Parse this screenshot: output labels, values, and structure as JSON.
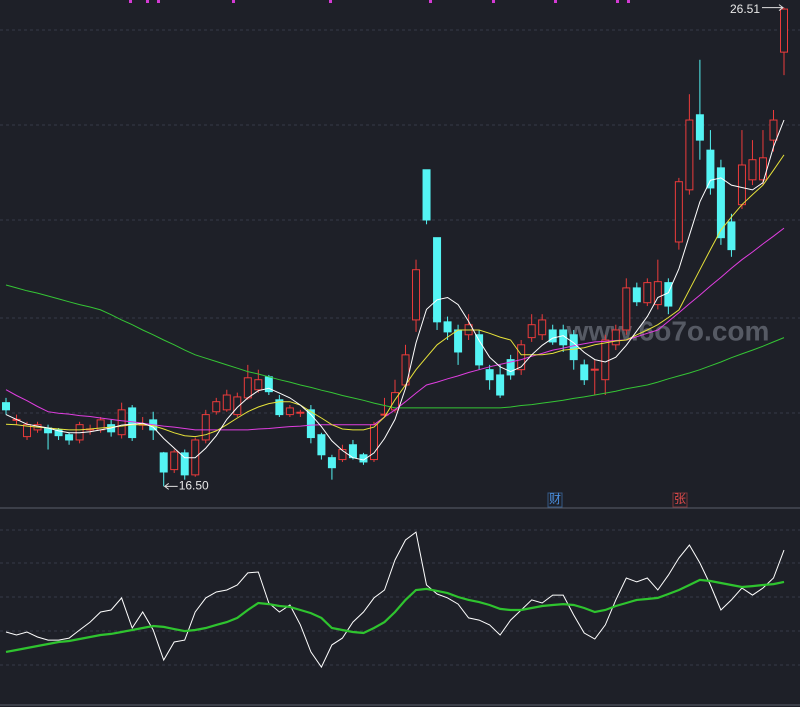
{
  "chart_data": [
    {
      "type": "candlestick",
      "ylim": [
        16.11,
        26.67
      ],
      "up_color": "#ec3b3b",
      "down_color": "#54f4f4",
      "open": [
        18.25,
        17.89,
        17.54,
        17.68,
        17.72,
        17.68,
        17.58,
        17.47,
        17.68,
        17.68,
        17.79,
        17.58,
        18.14,
        17.79,
        17.89,
        17.2,
        16.85,
        17.2,
        16.74,
        17.47,
        18.06,
        18.1,
        18.0,
        18.35,
        18.52,
        18.79,
        18.31,
        18.0,
        18.04,
        18.1,
        17.58,
        17.1,
        17.06,
        17.37,
        17.16,
        17.06,
        18.0,
        18.1,
        18.62,
        19.98,
        23.12,
        21.7,
        19.94,
        19.77,
        19.67,
        19.67,
        18.94,
        18.83,
        19.15,
        18.94,
        19.61,
        19.67,
        19.77,
        19.77,
        19.67,
        19.04,
        18.94,
        18.73,
        19.46,
        19.77,
        20.65,
        20.34,
        20.3,
        20.76,
        21.61,
        22.7,
        24.27,
        23.53,
        23.16,
        22.03,
        22.39,
        22.91,
        22.91,
        23.74,
        25.58
      ],
      "high": [
        18.35,
        18.0,
        17.85,
        17.85,
        17.79,
        17.72,
        17.62,
        17.85,
        17.79,
        17.95,
        17.89,
        18.25,
        18.2,
        17.95,
        18.06,
        17.22,
        17.27,
        17.27,
        17.52,
        18.1,
        18.35,
        18.52,
        18.46,
        19.04,
        18.94,
        18.83,
        18.41,
        18.2,
        18.1,
        18.2,
        17.62,
        17.16,
        17.37,
        17.47,
        17.2,
        17.85,
        18.35,
        18.73,
        19.46,
        21.24,
        23.12,
        21.7,
        20.05,
        19.88,
        20.1,
        19.77,
        19.04,
        19.04,
        19.25,
        19.56,
        20.1,
        20.1,
        19.88,
        19.88,
        19.77,
        19.15,
        19.15,
        19.67,
        19.88,
        20.85,
        20.76,
        20.85,
        21.24,
        20.85,
        22.95,
        24.7,
        25.42,
        23.95,
        23.33,
        22.2,
        23.95,
        23.74,
        23.95,
        24.37,
        26.51
      ],
      "low": [
        18.0,
        17.79,
        17.47,
        17.62,
        17.27,
        17.47,
        17.37,
        17.4,
        17.58,
        17.62,
        17.54,
        17.5,
        17.45,
        17.68,
        17.47,
        16.5,
        16.78,
        16.64,
        16.7,
        17.4,
        18.0,
        18.06,
        17.95,
        18.31,
        18.46,
        18.41,
        17.95,
        17.95,
        17.95,
        17.4,
        17.06,
        16.64,
        17.01,
        17.06,
        16.95,
        17.01,
        17.95,
        18.04,
        18.52,
        19.73,
        21.98,
        19.77,
        19.56,
        19.04,
        19.56,
        18.94,
        18.52,
        18.35,
        18.73,
        18.83,
        19.52,
        19.56,
        19.46,
        19.31,
        18.94,
        18.62,
        18.41,
        18.41,
        19.35,
        19.67,
        20.27,
        20.27,
        20.2,
        20.1,
        21.45,
        22.6,
        23.33,
        22.6,
        21.55,
        21.3,
        22.3,
        22.8,
        22.8,
        23.5,
        25.1
      ],
      "close": [
        18.1,
        17.9,
        17.79,
        17.79,
        17.62,
        17.56,
        17.47,
        17.79,
        17.7,
        17.89,
        17.64,
        18.1,
        17.52,
        17.8,
        17.68,
        16.8,
        17.22,
        16.74,
        17.47,
        18.0,
        18.27,
        18.41,
        18.37,
        18.77,
        18.73,
        18.48,
        18.0,
        18.14,
        18.05,
        17.52,
        17.16,
        16.89,
        17.27,
        17.1,
        17.01,
        17.79,
        18.01,
        18.46,
        19.25,
        21.03,
        22.07,
        19.94,
        19.73,
        19.31,
        19.88,
        19.04,
        18.73,
        18.41,
        18.83,
        19.46,
        19.88,
        19.98,
        19.52,
        19.46,
        19.15,
        18.73,
        18.95,
        19.56,
        19.77,
        20.65,
        20.36,
        20.76,
        20.78,
        20.27,
        22.87,
        24.16,
        23.74,
        22.74,
        21.7,
        21.45,
        23.22,
        23.33,
        23.37,
        24.16,
        26.48
      ],
      "series": [
        {
          "color": "#35c535",
          "values": [
            20.71,
            20.65,
            20.59,
            20.54,
            20.48,
            20.42,
            20.36,
            20.3,
            20.25,
            20.19,
            20.09,
            19.98,
            19.88,
            19.77,
            19.67,
            19.56,
            19.46,
            19.35,
            19.25,
            19.18,
            19.11,
            19.04,
            18.97,
            18.9,
            18.85,
            18.79,
            18.73,
            18.68,
            18.62,
            18.57,
            18.51,
            18.46,
            18.4,
            18.35,
            18.3,
            18.24,
            18.19,
            18.14,
            18.14,
            18.14,
            18.14,
            18.14,
            18.14,
            18.14,
            18.14,
            18.14,
            18.14,
            18.14,
            18.16,
            18.19,
            18.21,
            18.24,
            18.27,
            18.3,
            18.34,
            18.37,
            18.41,
            18.45,
            18.49,
            18.54,
            18.58,
            18.62,
            18.68,
            18.75,
            18.81,
            18.87,
            18.94,
            19.02,
            19.1,
            19.19,
            19.27,
            19.35,
            19.43,
            19.52,
            19.61
          ]
        },
        {
          "color": "#e03ee0",
          "values": [
            18.52,
            18.4,
            18.29,
            18.17,
            18.06,
            18.03,
            18.01,
            17.98,
            17.96,
            17.93,
            17.9,
            17.87,
            17.85,
            17.82,
            17.79,
            17.76,
            17.74,
            17.71,
            17.68,
            17.68,
            17.68,
            17.68,
            17.68,
            17.68,
            17.7,
            17.71,
            17.73,
            17.75,
            17.76,
            17.78,
            17.79,
            17.79,
            17.79,
            17.79,
            17.79,
            17.79,
            17.95,
            18.1,
            18.27,
            18.45,
            18.62,
            18.68,
            18.75,
            18.81,
            18.88,
            18.94,
            19.0,
            19.05,
            19.1,
            19.15,
            19.22,
            19.28,
            19.35,
            19.39,
            19.44,
            19.48,
            19.52,
            19.53,
            19.55,
            19.56,
            19.63,
            19.7,
            19.77,
            19.95,
            20.13,
            20.32,
            20.5,
            20.69,
            20.87,
            21.06,
            21.24,
            21.4,
            21.57,
            21.73,
            21.9
          ]
        },
        {
          "color": "#e6e23a",
          "values": [
            17.8,
            17.79,
            17.76,
            17.74,
            17.72,
            17.7,
            17.68,
            17.68,
            17.7,
            17.72,
            17.74,
            17.76,
            17.79,
            17.79,
            17.77,
            17.7,
            17.62,
            17.56,
            17.54,
            17.58,
            17.66,
            17.79,
            17.93,
            18.06,
            18.16,
            18.23,
            18.27,
            18.27,
            18.2,
            18.06,
            17.93,
            17.79,
            17.7,
            17.68,
            17.68,
            17.74,
            17.95,
            18.31,
            18.62,
            18.94,
            19.2,
            19.46,
            19.62,
            19.77,
            19.77,
            19.77,
            19.7,
            19.62,
            19.56,
            19.25,
            19.25,
            19.25,
            19.28,
            19.35,
            19.37,
            19.4,
            19.46,
            19.5,
            19.54,
            19.56,
            19.67,
            19.77,
            19.88,
            20.03,
            20.19,
            20.61,
            21.03,
            21.45,
            21.86,
            22.13,
            22.39,
            22.6,
            22.8,
            23.11,
            23.43
          ]
        },
        {
          "color": "#ffffff",
          "values": [
            18.0,
            17.9,
            17.8,
            17.76,
            17.72,
            17.66,
            17.62,
            17.62,
            17.64,
            17.68,
            17.72,
            17.78,
            17.8,
            17.82,
            17.74,
            17.5,
            17.3,
            17.1,
            17.1,
            17.3,
            17.56,
            17.9,
            18.15,
            18.35,
            18.5,
            18.55,
            18.45,
            18.35,
            18.2,
            18.0,
            17.75,
            17.45,
            17.25,
            17.1,
            17.05,
            17.2,
            17.5,
            17.9,
            18.55,
            19.5,
            20.2,
            20.4,
            20.45,
            20.3,
            19.95,
            19.55,
            19.2,
            19.0,
            18.9,
            19.0,
            19.25,
            19.45,
            19.6,
            19.65,
            19.5,
            19.3,
            19.15,
            19.1,
            19.2,
            19.45,
            19.75,
            20.05,
            20.45,
            20.55,
            21.05,
            21.75,
            22.45,
            22.9,
            22.95,
            22.8,
            22.75,
            22.7,
            22.85,
            23.6,
            24.16
          ]
        }
      ],
      "annotations": [
        {
          "value": 26.51,
          "label": "26.51"
        },
        {
          "value": 16.5,
          "label": "16.50"
        }
      ],
      "markers": [
        {
          "label": "财",
          "color": "#4a8fe0"
        },
        {
          "label": "张",
          "color": "#e04a4a"
        }
      ],
      "watermark": "www.6o7o.com"
    },
    {
      "type": "line",
      "ylim": [
        0,
        100
      ],
      "series": [
        {
          "color": "#ffffff",
          "width": 1,
          "values": [
            37.8,
            36.1,
            37.8,
            35.0,
            33.3,
            33.3,
            34.4,
            38.9,
            43.3,
            48.9,
            50.0,
            56.7,
            40.0,
            48.9,
            38.9,
            22.2,
            32.2,
            33.3,
            48.9,
            56.7,
            60.0,
            61.1,
            63.9,
            70.6,
            71.1,
            53.9,
            48.9,
            52.8,
            41.7,
            26.7,
            18.3,
            30.6,
            34.4,
            43.3,
            48.9,
            56.7,
            61.1,
            77.8,
            88.9,
            93.3,
            63.9,
            58.9,
            56.7,
            53.3,
            45.6,
            44.4,
            41.7,
            36.1,
            44.4,
            50.0,
            55.6,
            53.9,
            58.3,
            58.3,
            47.2,
            37.2,
            33.9,
            41.7,
            55.6,
            67.8,
            65.6,
            67.8,
            61.1,
            69.4,
            78.9,
            86.1,
            76.1,
            63.9,
            50.0,
            55.6,
            62.2,
            58.3,
            62.2,
            67.8,
            83.3
          ]
        },
        {
          "color": "#2fc42f",
          "width": 2.2,
          "values": [
            26.7,
            27.8,
            28.9,
            30.0,
            31.1,
            32.2,
            32.8,
            33.9,
            35.0,
            36.1,
            36.7,
            37.8,
            38.9,
            40.0,
            41.1,
            40.6,
            39.4,
            38.3,
            38.9,
            40.0,
            41.7,
            43.3,
            45.6,
            50.0,
            53.9,
            53.3,
            52.2,
            51.7,
            50.0,
            48.3,
            45.6,
            40.0,
            38.9,
            37.8,
            37.2,
            40.0,
            43.3,
            48.9,
            55.6,
            61.1,
            61.7,
            60.6,
            59.4,
            57.2,
            55.6,
            54.4,
            52.8,
            50.6,
            50.0,
            50.0,
            51.1,
            52.2,
            52.8,
            53.3,
            52.8,
            51.1,
            48.9,
            50.0,
            52.2,
            53.9,
            55.6,
            56.1,
            56.7,
            58.9,
            61.1,
            63.9,
            66.7,
            66.1,
            65.0,
            63.9,
            62.8,
            63.3,
            63.9,
            64.4,
            65.6
          ]
        }
      ]
    }
  ]
}
